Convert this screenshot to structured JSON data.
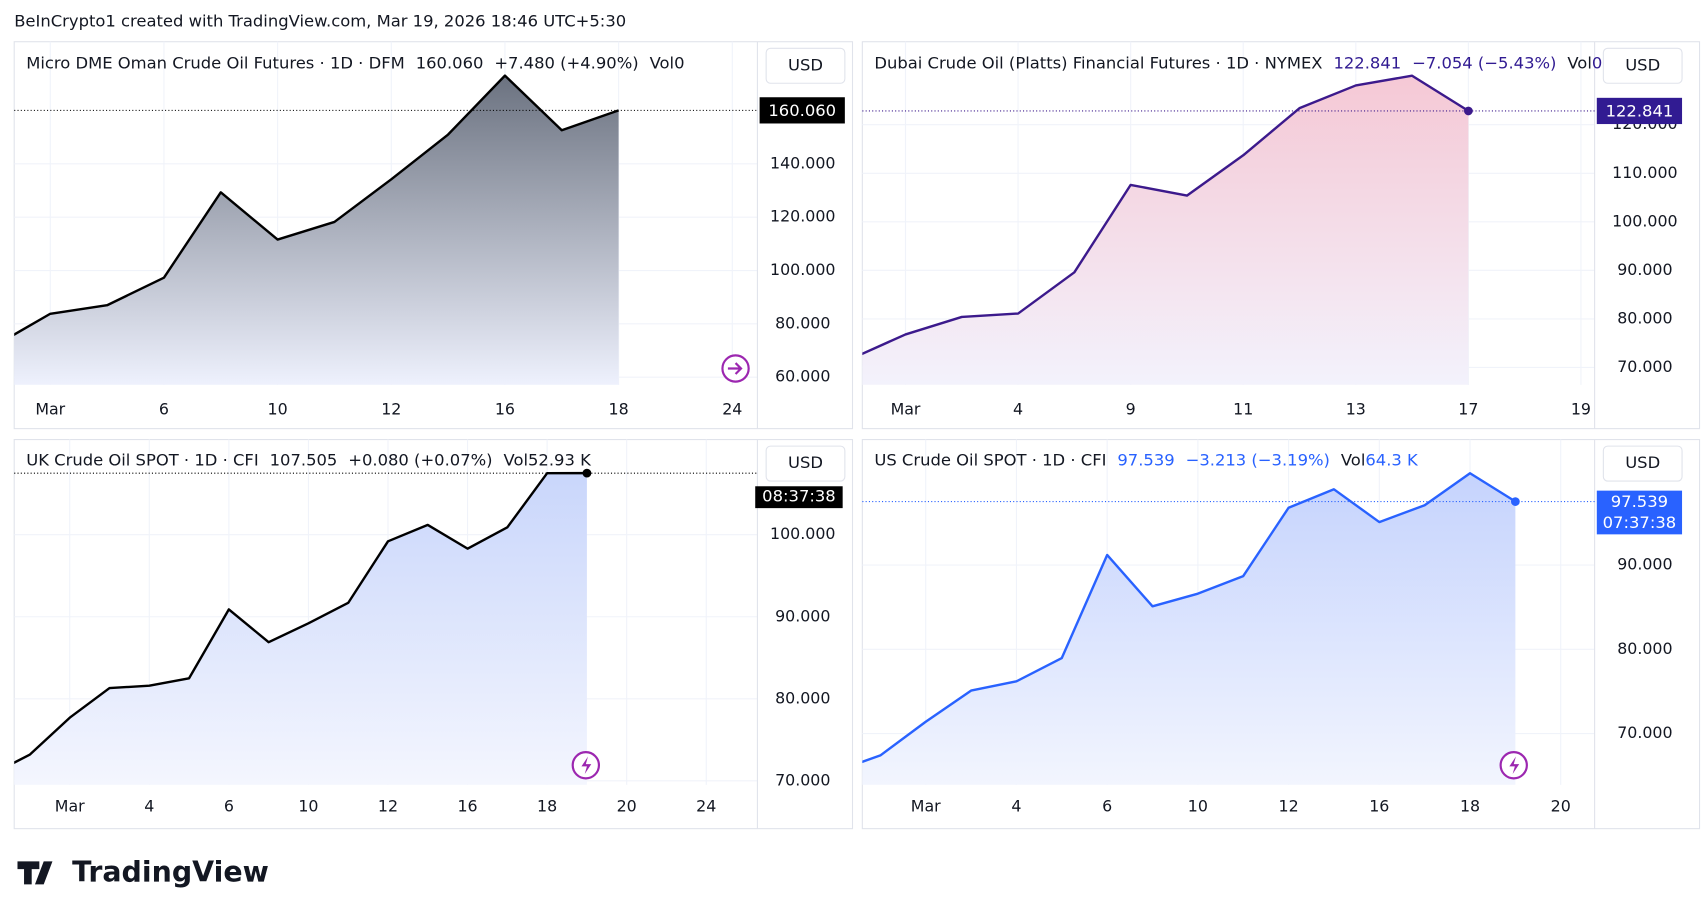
{
  "header": "BeInCrypto1 created with TradingView.com, Mar 19, 2026 18:46 UTC+5:30",
  "footer": "TradingView",
  "chart_data": [
    {
      "type": "area",
      "title": "Micro DME Oman Crude Oil Futures · 1D · DFM",
      "price": "160.060",
      "change": "+7.480 (+4.90%)",
      "volume_label": "Vol",
      "volume": "0",
      "currency": "USD",
      "categories": [
        null,
        "Mar",
        null,
        "6",
        null,
        "10",
        null,
        "12",
        null,
        "16",
        null,
        "18",
        null,
        "24"
      ],
      "values": [
        71.5,
        83.8,
        87.0,
        97.3,
        129.3,
        111.6,
        118.2,
        134.2,
        151.0,
        173.1,
        152.6,
        160.06,
        null,
        null
      ],
      "ylim": [
        57.1,
        185.8
      ],
      "yticks": [
        {
          "value": 60,
          "label": "60.000"
        },
        {
          "value": 80,
          "label": "80.000"
        },
        {
          "value": 100,
          "label": "100.000"
        },
        {
          "value": 120,
          "label": "120.000"
        },
        {
          "value": 140,
          "label": "140.000"
        }
      ],
      "color": "#000000",
      "header_color": "#131722",
      "fill_colors": [
        "#6b7280",
        "#eef1fd"
      ],
      "grid": true
    },
    {
      "type": "area",
      "title": "Dubai Crude Oil (Platts) Financial Futures · 1D · NYMEX",
      "price": "122.841",
      "change": "−7.054 (−5.43%)",
      "volume_label": "Vol",
      "volume": "0",
      "currency": "USD",
      "categories": [
        null,
        "Mar",
        null,
        "4",
        null,
        "9",
        null,
        "11",
        null,
        "13",
        null,
        "17",
        null,
        "19"
      ],
      "values": [
        71.6,
        76.8,
        80.4,
        81.1,
        89.6,
        107.6,
        105.4,
        113.7,
        123.4,
        128.1,
        130.1,
        122.841,
        null,
        null
      ],
      "ylim": [
        66.4,
        137.1
      ],
      "yticks": [
        {
          "value": 70,
          "label": "70.000"
        },
        {
          "value": 80,
          "label": "80.000"
        },
        {
          "value": 90,
          "label": "90.000"
        },
        {
          "value": 100,
          "label": "100.000"
        },
        {
          "value": 110,
          "label": "110.000"
        },
        {
          "value": 120,
          "label": "120.000"
        }
      ],
      "color": "#3c1a8c",
      "header_color": "#311b92",
      "fill_colors": [
        "#f5c8d5",
        "#f3f2fc"
      ],
      "grid": true
    },
    {
      "type": "area",
      "title": "UK Crude Oil SPOT · 1D · CFI",
      "price": "107.505",
      "change": "+0.080 (+0.07%)",
      "volume_label": "Vol",
      "volume": "52.93 K",
      "currency": "USD",
      "countdown": "08:37:38",
      "categories": [
        null,
        null,
        "Mar",
        null,
        "4",
        null,
        "6",
        null,
        "10",
        null,
        "12",
        null,
        "16",
        null,
        "18",
        null,
        "20",
        null,
        "24"
      ],
      "values": [
        70.7,
        73.2,
        77.7,
        81.3,
        81.6,
        82.5,
        90.9,
        86.9,
        89.2,
        91.7,
        99.2,
        101.2,
        98.3,
        100.9,
        107.5,
        107.505,
        null,
        null,
        null
      ],
      "ylim": [
        69.5,
        111.6
      ],
      "yticks": [
        {
          "value": 70,
          "label": "70.000"
        },
        {
          "value": 80,
          "label": "80.000"
        },
        {
          "value": 90,
          "label": "90.000"
        },
        {
          "value": 100,
          "label": "100.000"
        }
      ],
      "color": "#000000",
      "header_color": "#131722",
      "fill_colors": [
        "#c9d6fb",
        "#f4f6fe"
      ],
      "grid": true
    },
    {
      "type": "area",
      "title": "US Crude Oil SPOT · 1D · CFI",
      "price": "97.539",
      "change": "−3.213 (−3.19%)",
      "volume_label": "Vol",
      "volume": "64.3 K",
      "currency": "USD",
      "countdown": "07:37:38",
      "categories": [
        null,
        null,
        "Mar",
        null,
        "4",
        null,
        "6",
        null,
        "10",
        null,
        "12",
        null,
        "16",
        null,
        "18",
        null,
        "20"
      ],
      "values": [
        65.5,
        67.4,
        71.4,
        75.1,
        76.2,
        78.96,
        91.2,
        85.1,
        86.6,
        88.7,
        96.8,
        99.0,
        95.1,
        97.1,
        100.9,
        97.539,
        null
      ],
      "ylim": [
        63.9,
        104.9
      ],
      "yticks": [
        {
          "value": 70,
          "label": "70.000"
        },
        {
          "value": 80,
          "label": "80.000"
        },
        {
          "value": 90,
          "label": "90.000"
        }
      ],
      "color": "#2962ff",
      "header_color": "#2962ff",
      "fill_colors": [
        "#c5d3fd",
        "#f2f5fe"
      ],
      "grid": true
    }
  ]
}
